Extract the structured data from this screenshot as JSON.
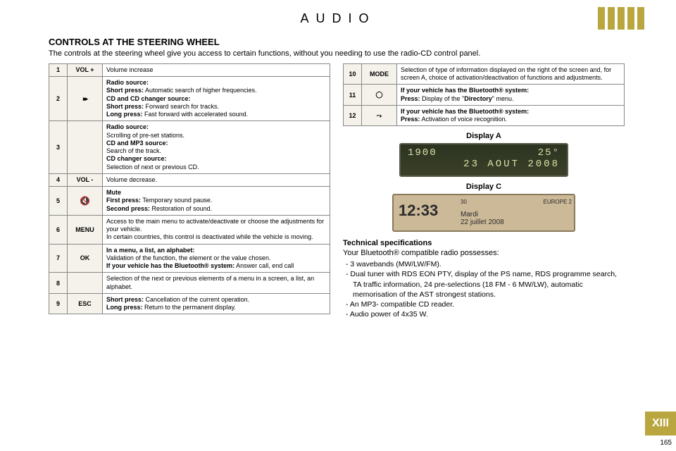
{
  "header": {
    "title": "AUDIO",
    "stripe_colors": [
      "#b9a63f",
      "#b9a63f",
      "#b9a63f",
      "#b9a63f",
      "#b9a63f"
    ]
  },
  "section": {
    "title": "CONTROLS AT THE STEERING WHEEL",
    "intro": "The controls at the steering wheel give you access to certain functions, without you needing to use the radio-CD control panel."
  },
  "left_table": [
    {
      "num": "1",
      "sym": "VOL +",
      "desc": "Volume increase"
    },
    {
      "num": "2",
      "sym_icon": "ff",
      "desc": "<b>Radio source:</b><br><b>Short press:</b> Automatic search of higher frequencies.<br><b>CD and CD changer source:</b><br><b>Short press:</b> Forward search for tracks.<br><b>Long press:</b> Fast forward with accelerated sound."
    },
    {
      "num": "3",
      "sym": "",
      "desc": "<b>Radio source:</b><br>Scrolling of pre-set stations.<br><b>CD and MP3 source:</b><br>Search of the track.<br><b>CD changer source:</b><br>Selection of next or previous CD."
    },
    {
      "num": "4",
      "sym": "VOL -",
      "desc": "Volume decrease."
    },
    {
      "num": "5",
      "sym_icon": "mute",
      "desc": "<b>Mute</b><br><b>First press:</b> Temporary sound pause.<br><b>Second press:</b> Restoration of sound."
    },
    {
      "num": "6",
      "sym": "MENU",
      "desc": "Access to the main menu to activate/deactivate or choose the adjustments for your vehicle.<br>In certain countries, this control is deactivated while the vehicle is moving."
    },
    {
      "num": "7",
      "sym": "OK",
      "desc": "<b>In a menu, a list, an alphabet:</b><br>Validation of the function, the element or the value chosen.<br><b>If your vehicle has the Bluetooth® system:</b> Answer call, end call"
    },
    {
      "num": "8",
      "sym": "",
      "desc": "Selection of the next or previous elements of a menu in a screen, a list, an alphabet."
    },
    {
      "num": "9",
      "sym": "ESC",
      "desc": "<b>Short press:</b> Cancellation of the current operation.<br><b>Long press:</b> Return to the permanent display."
    }
  ],
  "right_table": [
    {
      "num": "10",
      "sym": "MODE",
      "desc": "Selection of type of information displayed on the right of the screen and, for screen A, choice of activation/deactivation of functions and adjustments."
    },
    {
      "num": "11",
      "sym_icon": "clock",
      "desc": "<b>If your vehicle has the Bluetooth® system:</b><br><b>Press:</b> Display of the \"<b>Directory</b>\" menu."
    },
    {
      "num": "12",
      "sym_icon": "voice",
      "desc": "<b>If your vehicle has the Bluetooth® system:</b><br><b>Press:</b> Activation of voice recognition."
    }
  ],
  "displayA": {
    "label": "Display A",
    "line1_left": "1900",
    "line1_right": "25°",
    "line2": "23 AOUT 2008"
  },
  "displayC": {
    "label": "Display C",
    "time": "12:33",
    "top_left": "30",
    "top_right": "EUROPE 2",
    "date_line1": "Mardi",
    "date_line2": "22 juillet 2008"
  },
  "tech": {
    "title": "Technical specifications",
    "intro": "Your Bluetooth® compatible radio possesses:",
    "items": [
      "3 wavebands (MW/LW/FM).",
      "Dual tuner with RDS EON PTY, display of the PS name, RDS programme search, TA traffic information, 24 pre-selections (18 FM - 6 MW/LW), automatic memorisation of the AST strongest stations.",
      "An MP3- compatible CD reader.",
      "Audio power of 4x35 W."
    ]
  },
  "chapter": "XIII",
  "page_number": "165"
}
